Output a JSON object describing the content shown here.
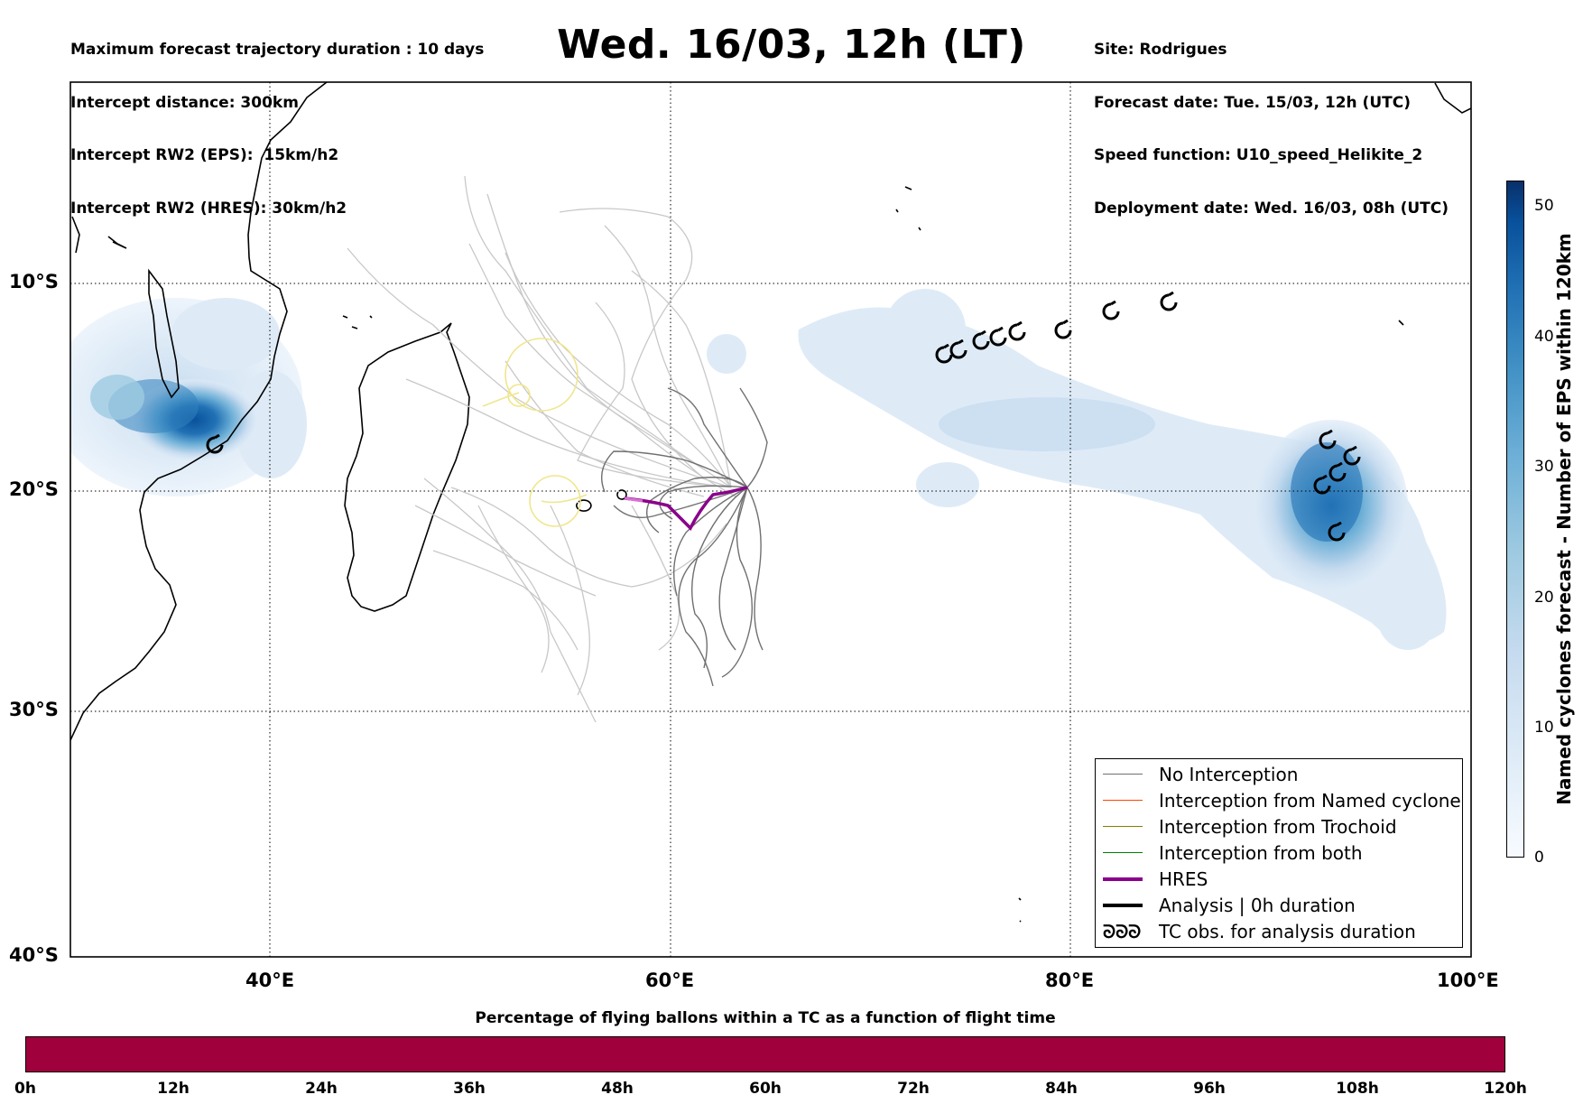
{
  "header": {
    "left_lines": [
      "Maximum forecast trajectory duration : 10 days",
      "Intercept distance: 300km",
      "Intercept RW2 (EPS):  15km/h2",
      "Intercept RW2 (HRES): 30km/h2"
    ],
    "title": "Wed. 16/03, 12h (LT)",
    "right_lines": [
      "Site: Rodrigues",
      "Forecast date: Tue. 15/03, 12h (UTC)",
      "Speed function: U10_speed_Helikite_2",
      "Deployment date: Wed. 16/03, 08h (UTC)"
    ]
  },
  "map": {
    "lon_range": [
      30,
      100
    ],
    "lat_range": [
      -40,
      0
    ],
    "lon_ticks": [
      "40°E",
      "60°E",
      "80°E",
      "100°E"
    ],
    "lat_ticks": [
      "10°S",
      "20°S",
      "30°S",
      "40°S"
    ],
    "graticule": "dotted",
    "colors": {
      "no_interception": "#707070",
      "named_cyclone": "#ff4500",
      "trochoid": "#808000",
      "both": "#008000",
      "hres": "#8b008b",
      "analysis": "#000000",
      "cyclone_tracks": "#c8c8c8",
      "trochoid_circles": "#f0e68c"
    }
  },
  "legend": {
    "items": [
      {
        "label": "No Interception",
        "color": "#707070",
        "style": "thin-line"
      },
      {
        "label": "Interception from Named cyclone",
        "color": "#ff4500",
        "style": "thin-line"
      },
      {
        "label": "Interception from Trochoid",
        "color": "#808000",
        "style": "thin-line"
      },
      {
        "label": "Interception from both",
        "color": "#008000",
        "style": "thin-line"
      },
      {
        "label": "HRES",
        "color": "#8b008b",
        "style": "thick-line"
      },
      {
        "label": "Analysis | 0h duration",
        "color": "#000000",
        "style": "thick-line"
      },
      {
        "label": "TC obs. for analysis duration",
        "color": "#000000",
        "style": "tc-symbols",
        "symbol_text": "ᘐᘐᘐ"
      }
    ]
  },
  "colorbar": {
    "label": "Named cyclones forecast - Number of EPS within 120km",
    "range": [
      0,
      52
    ],
    "ticks": [
      "0",
      "10",
      "20",
      "30",
      "40",
      "50"
    ],
    "colormap": "Blues"
  },
  "percentage_bar": {
    "title": "Percentage of flying ballons within a TC as a function of flight time",
    "ticks": [
      "0h",
      "12h",
      "24h",
      "36h",
      "48h",
      "60h",
      "72h",
      "84h",
      "96h",
      "108h",
      "120h"
    ],
    "fill_color": "#a0003c"
  }
}
